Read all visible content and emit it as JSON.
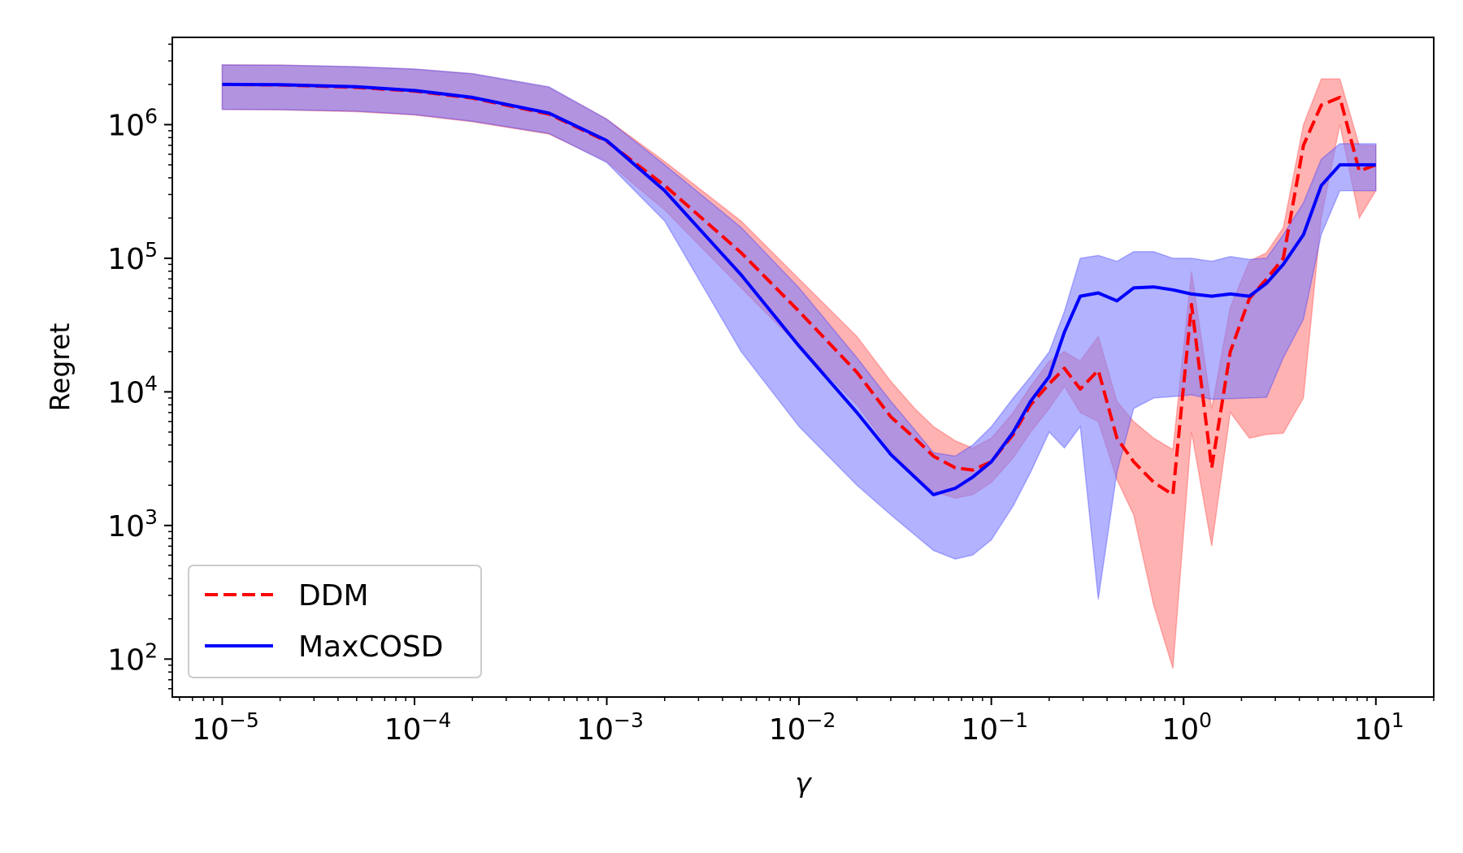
{
  "chart_data": {
    "type": "line",
    "title": "",
    "xlabel": "γ",
    "ylabel": "Regret",
    "xscale": "log",
    "yscale": "log",
    "xlim": [
      5.5e-06,
      20
    ],
    "ylim": [
      52,
      4500000
    ],
    "grid": false,
    "legend_position": "lower-left",
    "x_ticks": [
      {
        "base": "10",
        "exp": "−5",
        "value": 1e-05
      },
      {
        "base": "10",
        "exp": "−4",
        "value": 0.0001
      },
      {
        "base": "10",
        "exp": "−3",
        "value": 0.001
      },
      {
        "base": "10",
        "exp": "−2",
        "value": 0.01
      },
      {
        "base": "10",
        "exp": "−1",
        "value": 0.1
      },
      {
        "base": "10",
        "exp": "0",
        "value": 1
      },
      {
        "base": "10",
        "exp": "1",
        "value": 10
      }
    ],
    "y_ticks": [
      {
        "base": "10",
        "exp": "2",
        "value": 100
      },
      {
        "base": "10",
        "exp": "3",
        "value": 1000
      },
      {
        "base": "10",
        "exp": "4",
        "value": 10000
      },
      {
        "base": "10",
        "exp": "5",
        "value": 100000
      },
      {
        "base": "10",
        "exp": "6",
        "value": 1000000
      }
    ],
    "series": [
      {
        "name": "DDM",
        "color": "#ff0000",
        "band_color": "#ff7f7f",
        "line_style": "dashed",
        "x": [
          1e-05,
          2e-05,
          5e-05,
          0.0001,
          0.0002,
          0.0005,
          0.001,
          0.002,
          0.005,
          0.01,
          0.02,
          0.03,
          0.04,
          0.05,
          0.065,
          0.08,
          0.1,
          0.13,
          0.16,
          0.2,
          0.24,
          0.29,
          0.36,
          0.45,
          0.55,
          0.7,
          0.88,
          1.1,
          1.4,
          1.75,
          2.2,
          2.7,
          3.3,
          4.2,
          5.2,
          6.5,
          8.2,
          10
        ],
        "y": [
          2000000,
          1980000,
          1900000,
          1780000,
          1580000,
          1200000,
          750000,
          350000,
          110000,
          40000,
          14000,
          6500,
          4500,
          3300,
          2700,
          2600,
          3000,
          4800,
          8000,
          11500,
          15000,
          10500,
          14500,
          4500,
          3000,
          2100,
          1700,
          45000,
          2700,
          20000,
          50000,
          70000,
          100000,
          700000,
          1400000,
          1600000,
          450000,
          500000
        ],
        "lower": [
          1300000,
          1290000,
          1250000,
          1180000,
          1050000,
          850000,
          530000,
          230000,
          60000,
          22000,
          8000,
          3600,
          2400,
          1800,
          1600,
          1700,
          2100,
          3200,
          5000,
          7500,
          11000,
          7000,
          6000,
          2200,
          1200,
          250,
          85,
          5000,
          700,
          7000,
          4500,
          4800,
          4900,
          9000,
          200000,
          1000000,
          200000,
          320000
        ],
        "upper": [
          2800000,
          2790000,
          2700000,
          2600000,
          2400000,
          1900000,
          1100000,
          530000,
          190000,
          70000,
          26000,
          12000,
          7500,
          5500,
          4300,
          3800,
          4500,
          7000,
          11000,
          17000,
          20000,
          17000,
          26000,
          8500,
          6000,
          4500,
          3700,
          80000,
          7500,
          43000,
          95000,
          110000,
          170000,
          1000000,
          2200000,
          2200000,
          700000,
          700000
        ]
      },
      {
        "name": "MaxCOSD",
        "color": "#0000ff",
        "band_color": "#7f7fff",
        "line_style": "solid",
        "x": [
          1e-05,
          2e-05,
          5e-05,
          0.0001,
          0.0002,
          0.0005,
          0.001,
          0.002,
          0.005,
          0.01,
          0.02,
          0.03,
          0.04,
          0.05,
          0.065,
          0.08,
          0.1,
          0.13,
          0.16,
          0.2,
          0.24,
          0.29,
          0.36,
          0.45,
          0.55,
          0.7,
          0.88,
          1.1,
          1.4,
          1.75,
          2.2,
          2.7,
          3.3,
          4.2,
          5.2,
          6.5,
          8.2,
          10
        ],
        "y": [
          2000000,
          1990000,
          1920000,
          1800000,
          1600000,
          1220000,
          760000,
          320000,
          75000,
          22000,
          7000,
          3400,
          2300,
          1700,
          1900,
          2300,
          3000,
          5000,
          8500,
          13000,
          28000,
          52000,
          55000,
          48000,
          60000,
          61000,
          58000,
          54000,
          52000,
          54000,
          52000,
          65000,
          90000,
          150000,
          350000,
          500000,
          500000,
          500000
        ],
        "lower": [
          1300000,
          1295000,
          1260000,
          1190000,
          1060000,
          860000,
          520000,
          190000,
          20000,
          5500,
          2000,
          1200,
          850,
          650,
          560,
          600,
          780,
          1400,
          2500,
          5000,
          3800,
          5500,
          280,
          2500,
          7500,
          9000,
          9200,
          9500,
          8800,
          8900,
          9000,
          9100,
          18000,
          35000,
          150000,
          320000,
          320000,
          320000
        ],
        "upper": [
          2800000,
          2790000,
          2720000,
          2610000,
          2410000,
          1920000,
          1100000,
          500000,
          170000,
          60000,
          18000,
          8500,
          5200,
          3500,
          3300,
          4000,
          5500,
          9000,
          13000,
          20000,
          40000,
          100000,
          105000,
          95000,
          112000,
          112000,
          100000,
          100000,
          95000,
          103000,
          98000,
          100000,
          150000,
          260000,
          550000,
          720000,
          720000,
          720000
        ]
      }
    ],
    "overlap_band_color": "#a877c4",
    "notes": ""
  }
}
